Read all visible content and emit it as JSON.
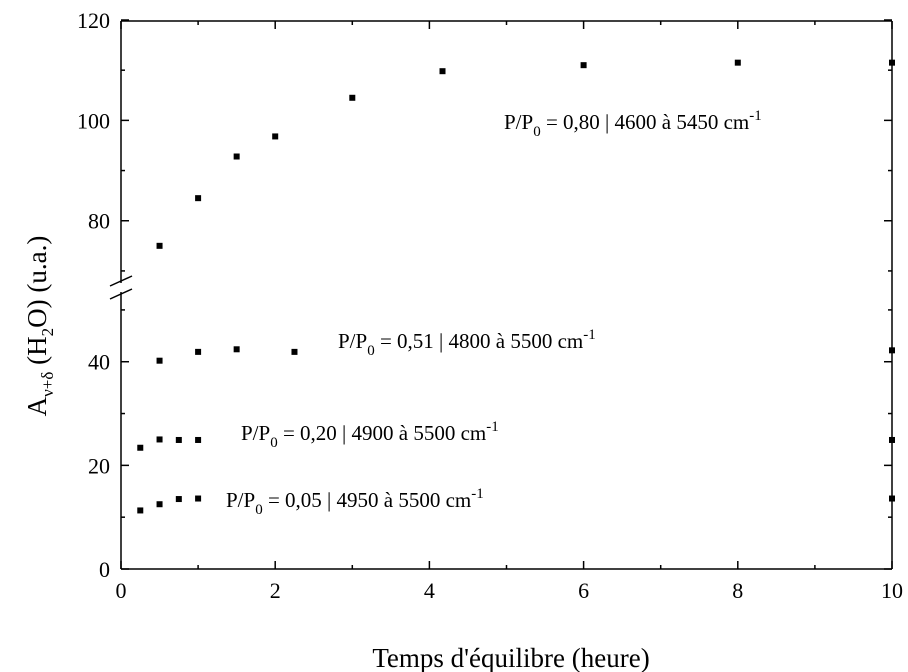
{
  "chart_data": {
    "type": "scatter",
    "title": "",
    "xlabel": "Temps d'équilibre (heure)",
    "ylabel": {
      "main": "A",
      "main_sub": "ν+δ",
      "paren_open": " (H",
      "paren_sub": "2",
      "paren_close": "O) (u.a.)"
    },
    "xlim": [
      0,
      10
    ],
    "x_ticks": [
      0,
      2,
      4,
      6,
      8,
      10
    ],
    "y_axis_break": {
      "lower_max": 55,
      "upper_min": 66
    },
    "y_ticks": [
      0,
      20,
      40,
      80,
      100,
      120
    ],
    "grid": false,
    "series": [
      {
        "name": "P/P0 = 0,80 | 4600 à 5450 cm-1",
        "label": {
          "pre": "P/P",
          "sub": "0",
          "mid": " = 0,80 | 4600 à 5450 cm",
          "sup": "-1"
        },
        "x": [
          0.5,
          1,
          1.5,
          2,
          3,
          4.17,
          6,
          8,
          10
        ],
        "y": [
          75,
          84.5,
          92.8,
          96.8,
          104.5,
          109.8,
          111,
          111.5,
          111.5
        ]
      },
      {
        "name": "P/P0 = 0,51 | 4800 à 5500 cm-1",
        "label": {
          "pre": "P/P",
          "sub": "0",
          "mid": " = 0,51 | 4800 à 5500 cm",
          "sup": "-1"
        },
        "x": [
          0.5,
          1,
          1.5,
          2.25,
          10
        ],
        "y": [
          40.2,
          41.9,
          42.4,
          41.9,
          42.2
        ]
      },
      {
        "name": "P/P0 = 0,20 | 4900 à 5500 cm-1",
        "label": {
          "pre": "P/P",
          "sub": "0",
          "mid": " = 0,20 | 4900 à 5500 cm",
          "sup": "-1"
        },
        "x": [
          0.25,
          0.5,
          0.75,
          1,
          10
        ],
        "y": [
          23.4,
          25,
          24.9,
          24.9,
          24.9
        ]
      },
      {
        "name": "P/P0 = 0,05 | 4950 à 5500 cm-1",
        "label": {
          "pre": "P/P",
          "sub": "0",
          "mid": " = 0,05 | 4950 à 5500 cm",
          "sup": "-1"
        },
        "x": [
          0.25,
          0.5,
          0.75,
          1,
          10
        ],
        "y": [
          11.3,
          12.5,
          13.5,
          13.6,
          13.6
        ]
      }
    ]
  }
}
